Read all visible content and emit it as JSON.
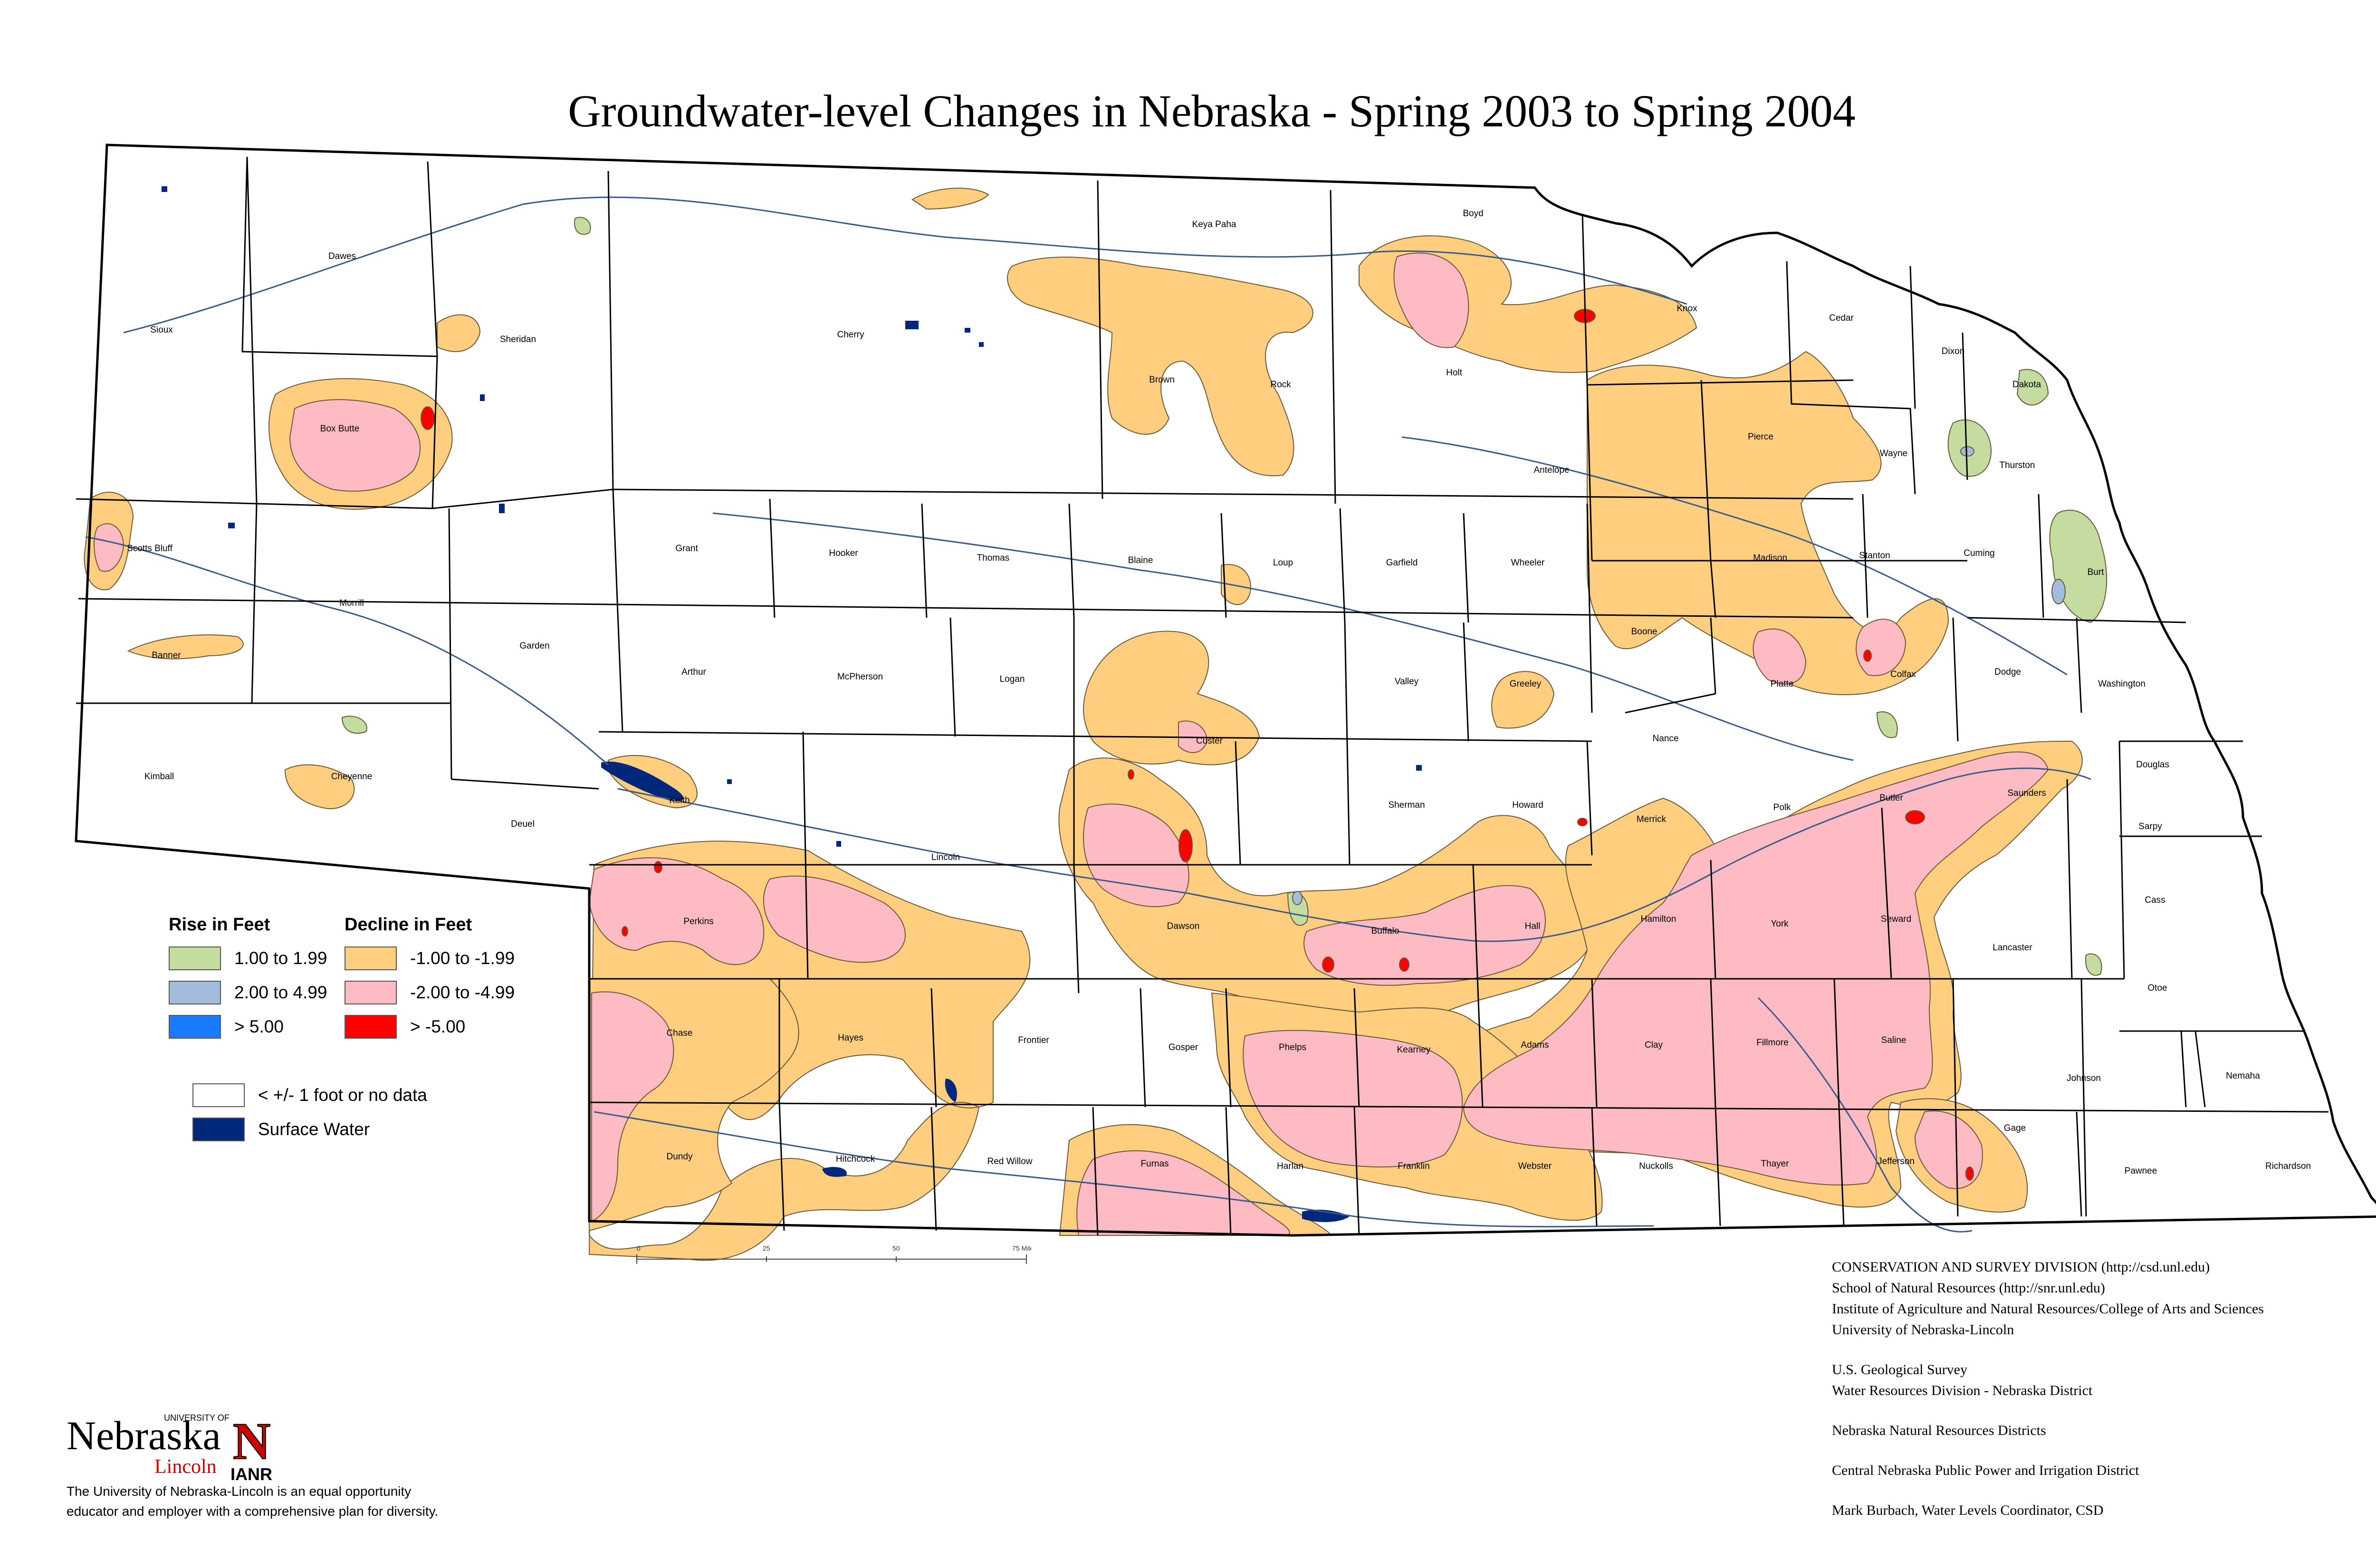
{
  "title": "Groundwater-level Changes in Nebraska - Spring 2003 to Spring 2004",
  "counties": [
    {
      "name": "Sioux"
    },
    {
      "name": "Dawes"
    },
    {
      "name": "Sheridan"
    },
    {
      "name": "Cherry"
    },
    {
      "name": "Keya Paha"
    },
    {
      "name": "Boyd"
    },
    {
      "name": "Brown"
    },
    {
      "name": "Rock"
    },
    {
      "name": "Holt"
    },
    {
      "name": "Knox"
    },
    {
      "name": "Cedar"
    },
    {
      "name": "Dixon"
    },
    {
      "name": "Dakota"
    },
    {
      "name": "Box Butte"
    },
    {
      "name": "Antelope"
    },
    {
      "name": "Pierce"
    },
    {
      "name": "Wayne"
    },
    {
      "name": "Thurston"
    },
    {
      "name": "Scotts Bluff"
    },
    {
      "name": "Morrill"
    },
    {
      "name": "Garden"
    },
    {
      "name": "Grant"
    },
    {
      "name": "Hooker"
    },
    {
      "name": "Thomas"
    },
    {
      "name": "Blaine"
    },
    {
      "name": "Loup"
    },
    {
      "name": "Garfield"
    },
    {
      "name": "Wheeler"
    },
    {
      "name": "Madison"
    },
    {
      "name": "Stanton"
    },
    {
      "name": "Cuming"
    },
    {
      "name": "Burt"
    },
    {
      "name": "Banner"
    },
    {
      "name": "Arthur"
    },
    {
      "name": "McPherson"
    },
    {
      "name": "Logan"
    },
    {
      "name": "Valley"
    },
    {
      "name": "Greeley"
    },
    {
      "name": "Boone"
    },
    {
      "name": "Platte"
    },
    {
      "name": "Colfax"
    },
    {
      "name": "Dodge"
    },
    {
      "name": "Washington"
    },
    {
      "name": "Kimball"
    },
    {
      "name": "Cheyenne"
    },
    {
      "name": "Deuel"
    },
    {
      "name": "Keith"
    },
    {
      "name": "Custer"
    },
    {
      "name": "Nance"
    },
    {
      "name": "Sherman"
    },
    {
      "name": "Howard"
    },
    {
      "name": "Merrick"
    },
    {
      "name": "Polk"
    },
    {
      "name": "Butler"
    },
    {
      "name": "Saunders"
    },
    {
      "name": "Douglas"
    },
    {
      "name": "Sarpy"
    },
    {
      "name": "Lincoln"
    },
    {
      "name": "Perkins"
    },
    {
      "name": "Dawson"
    },
    {
      "name": "Buffalo"
    },
    {
      "name": "Hall"
    },
    {
      "name": "Hamilton"
    },
    {
      "name": "York"
    },
    {
      "name": "Seward"
    },
    {
      "name": "Lancaster"
    },
    {
      "name": "Cass"
    },
    {
      "name": "Otoe"
    },
    {
      "name": "Chase"
    },
    {
      "name": "Hayes"
    },
    {
      "name": "Frontier"
    },
    {
      "name": "Gosper"
    },
    {
      "name": "Phelps"
    },
    {
      "name": "Kearney"
    },
    {
      "name": "Adams"
    },
    {
      "name": "Clay"
    },
    {
      "name": "Fillmore"
    },
    {
      "name": "Saline"
    },
    {
      "name": "Johnson"
    },
    {
      "name": "Nemaha"
    },
    {
      "name": "Dundy"
    },
    {
      "name": "Hitchcock"
    },
    {
      "name": "Red Willow"
    },
    {
      "name": "Furnas"
    },
    {
      "name": "Harlan"
    },
    {
      "name": "Franklin"
    },
    {
      "name": "Webster"
    },
    {
      "name": "Nuckolls"
    },
    {
      "name": "Thayer"
    },
    {
      "name": "Jefferson"
    },
    {
      "name": "Gage"
    },
    {
      "name": "Pawnee"
    },
    {
      "name": "Richardson"
    }
  ],
  "legend": {
    "rise_title": "Rise in Feet",
    "decline_title": "Decline in Feet",
    "rise": [
      {
        "label": "1.00 to 1.99",
        "color": "#c5dca0"
      },
      {
        "label": "2.00 to 4.99",
        "color": "#a4bcdc"
      },
      {
        "label": "> 5.00",
        "color": "#1b7bff"
      }
    ],
    "decline": [
      {
        "label": "-1.00 to -1.99",
        "color": "#ffcf7f"
      },
      {
        "label": "-2.00 to -4.99",
        "color": "#ffbbc3"
      },
      {
        "label": "> -5.00",
        "color": "#ff0000"
      }
    ],
    "no_data": {
      "label": "< +/- 1 foot or no data",
      "color": "#ffffff"
    },
    "surface_water": {
      "label": "Surface Water",
      "color": "#00287a"
    }
  },
  "scale": {
    "ticks": [
      "0",
      "25",
      "50",
      "75 Miles"
    ]
  },
  "credits": [
    [
      "CONSERVATION AND SURVEY DIVISION (http://csd.unl.edu)",
      "School of Natural Resources (http://snr.unl.edu)",
      "Institute of Agriculture and Natural Resources/College of Arts and Sciences",
      "University of Nebraska-Lincoln"
    ],
    [
      "U.S. Geological Survey",
      "Water Resources Division - Nebraska District"
    ],
    [
      "Nebraska Natural Resources Districts"
    ],
    [
      "Central Nebraska Public Power and Irrigation District"
    ],
    [
      "Mark Burbach, Water Levels Coordinator, CSD"
    ]
  ],
  "logo": {
    "university": "UNIVERSITY OF",
    "name": "Nebraska",
    "campus": "Lincoln",
    "unit": "IANR",
    "letter": "N"
  },
  "eo_statement": [
    "The University of Nebraska-Lincoln is an equal opportunity",
    "educator and employer with a comprehensive plan for diversity."
  ]
}
